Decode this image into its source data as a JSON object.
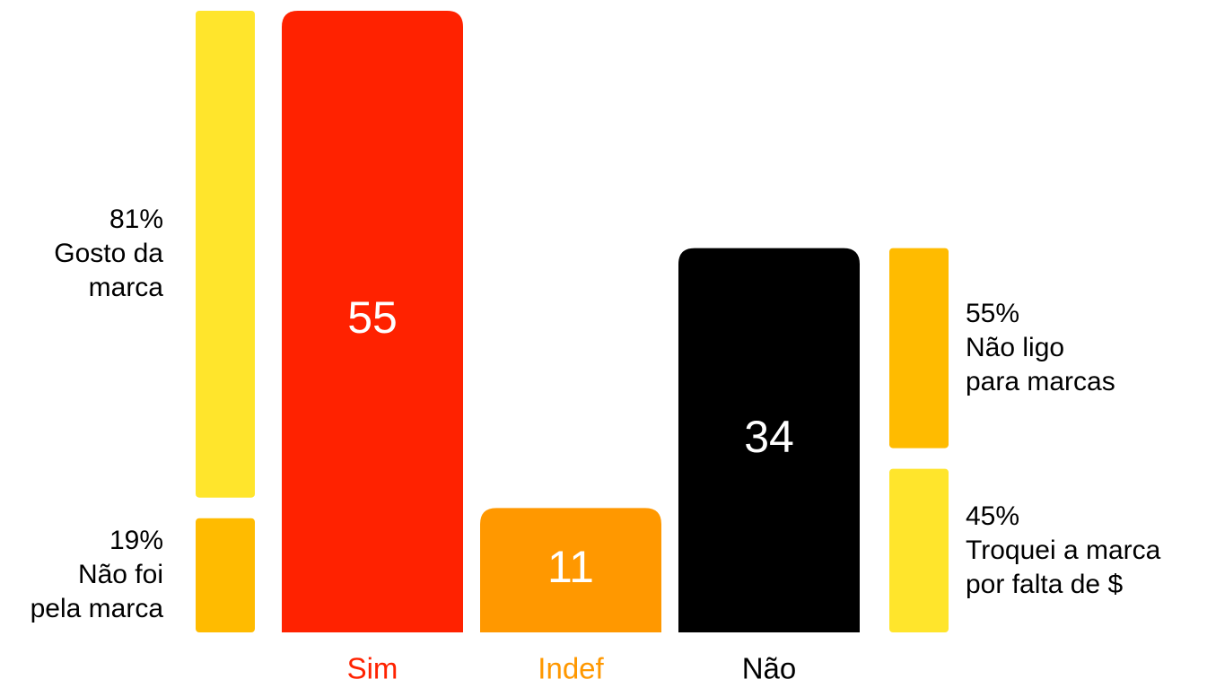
{
  "chart_data": {
    "type": "bar",
    "categories": [
      "Sim",
      "Indef",
      "Não"
    ],
    "values": [
      55,
      11,
      34
    ],
    "colors": [
      "#ff2200",
      "#ff9800",
      "#000000"
    ],
    "breakdowns": [
      {
        "side": "left",
        "segments": [
          {
            "label": "Gosto da\nmarca",
            "value": 81,
            "value_label": "81%",
            "color": "#ffe52c"
          },
          {
            "label": "Não foi\npela marca",
            "value": 19,
            "value_label": "19%",
            "color": "#ffbb00"
          }
        ]
      },
      null,
      {
        "side": "right",
        "segments": [
          {
            "label": "Não ligo\npara marcas",
            "value": 55,
            "value_label": "55%",
            "color": "#ffbb00"
          },
          {
            "label": "Troquei a marca\npor falta de $",
            "value": 45,
            "value_label": "45%",
            "color": "#ffe52c"
          }
        ]
      }
    ]
  }
}
